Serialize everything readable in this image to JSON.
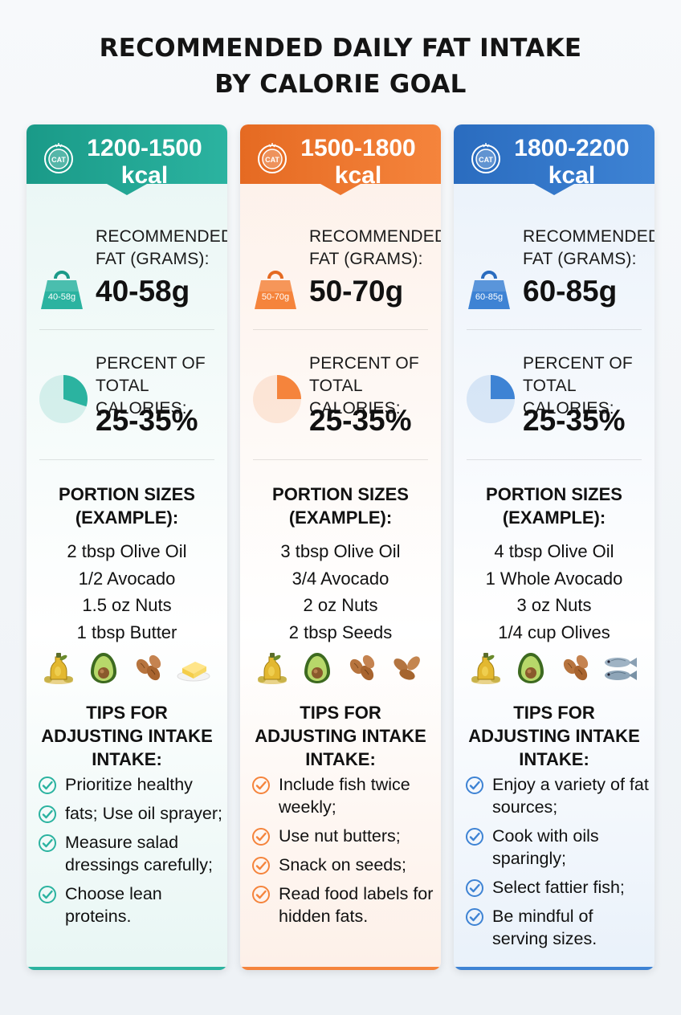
{
  "title": {
    "line1": "RECOMMENDED DAILY FAT INTAKE",
    "line2": "BY CALORIE GOAL"
  },
  "columns": [
    {
      "color": "#2bb3a0",
      "color_dark": "#1a9a88",
      "bg": "#e8f6f4",
      "badge_text": "CAT",
      "kcal_line1": "1200-1500",
      "kcal_line2": "kcal",
      "fat_label_line1": "RECOMMENDED",
      "fat_label_line2": "FAT (GRAMS):",
      "weight_icon_text": "40-58g",
      "fat_value": "40-58g",
      "percent_label_line1": "PERCENT OF",
      "percent_label_line2": "TOTAL CALORIES:",
      "percent_value": "25-35%",
      "percent_fraction": 0.3,
      "portion_title_line1": "PORTION SIZES",
      "portion_title_line2": "(EXAMPLE):",
      "portions": [
        "2 tbsp Olive Oil",
        "1/2 Avocado",
        "1.5 oz Nuts",
        "1 tbsp Butter"
      ],
      "food_icons": [
        "olive-oil-icon",
        "avocado-icon",
        "almonds-icon",
        "butter-icon"
      ],
      "tips_title_line1": "TIPS FOR",
      "tips_title_line2": "ADJUSTING INTAKE",
      "tips_title_line3": "INTAKE:",
      "tips": [
        "Prioritize healthy",
        "fats; Use oil sprayer;",
        "Measure salad dressings carefully;",
        "Choose lean proteins."
      ]
    },
    {
      "color": "#f5843c",
      "color_dark": "#e56a22",
      "bg": "#fdf0e8",
      "badge_text": "CAT",
      "kcal_line1": "1500-1800",
      "kcal_line2": "kcal",
      "fat_label_line1": "RECOMMENDED",
      "fat_label_line2": "FAT (GRAMS):",
      "weight_icon_text": "50-70g",
      "fat_value": "50-70g",
      "percent_label_line1": "PERCENT OF",
      "percent_label_line2": "TOTAL CALORIES:",
      "percent_value": "25-35%",
      "percent_fraction": 0.25,
      "portion_title_line1": "PORTION SIZES",
      "portion_title_line2": "(EXAMPLE):",
      "portions": [
        "3 tbsp Olive Oil",
        "3/4 Avocado",
        "2 oz Nuts",
        "2 tbsp Seeds"
      ],
      "food_icons": [
        "olive-oil-icon",
        "avocado-icon",
        "almonds-icon",
        "seeds-icon"
      ],
      "tips_title_line1": "TIPS FOR",
      "tips_title_line2": "ADJUSTING INTAKE",
      "tips_title_line3": "INTAKE:",
      "tips": [
        "Include fish twice weekly;",
        "Use nut butters;",
        "Snack on seeds;",
        "Read food labels for hidden fats."
      ]
    },
    {
      "color": "#3e83d4",
      "color_dark": "#2a6cbf",
      "bg": "#e9f1fa",
      "badge_text": "CAT",
      "kcal_line1": "1800-2200",
      "kcal_line2": "kcal",
      "fat_label_line1": "RECOMMENDED",
      "fat_label_line2": "FAT (GRAMS):",
      "weight_icon_text": "60-85g",
      "fat_value": "60-85g",
      "percent_label_line1": "PERCENT OF",
      "percent_label_line2": "TOTAL CALORIES:",
      "percent_value": "25-35%",
      "percent_fraction": 0.25,
      "portion_title_line1": "PORTION SIZES",
      "portion_title_line2": "(EXAMPLE):",
      "portions": [
        "4 tbsp Olive Oil",
        "1 Whole Avocado",
        "3 oz Nuts",
        "1/4 cup Olives"
      ],
      "food_icons": [
        "olive-oil-icon",
        "avocado-icon",
        "almonds-icon",
        "fish-icon"
      ],
      "tips_title_line1": "TIPS FOR",
      "tips_title_line2": "ADJUSTING INTAKE",
      "tips_title_line3": "INTAKE:",
      "tips": [
        "Enjoy a variety of fat sources;",
        "Cook with oils sparingly;",
        "Select fattier fish;",
        "Be mindful of serving sizes."
      ]
    }
  ]
}
